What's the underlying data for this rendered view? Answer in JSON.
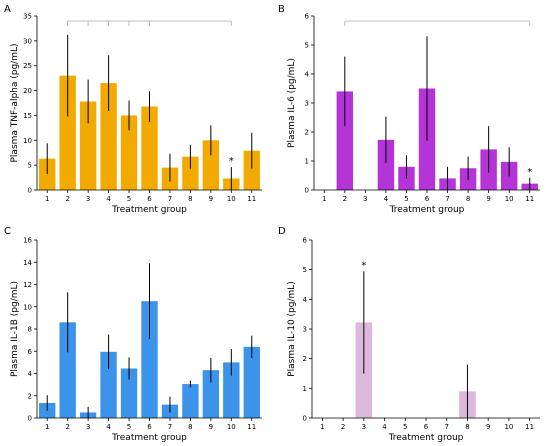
{
  "chart_data": [
    {
      "panel": "A",
      "type": "bar",
      "color": "#F2A900",
      "ylabel": "Plasma TNF-alpha (pg/mL)",
      "xlabel": "Treatment group",
      "ylim": [
        0,
        35
      ],
      "yticks": [
        0,
        5,
        10,
        15,
        20,
        25,
        30,
        35
      ],
      "categories": [
        "1",
        "2",
        "3",
        "4",
        "5",
        "6",
        "7",
        "8",
        "9",
        "10",
        "11"
      ],
      "values": [
        6.3,
        23.0,
        17.8,
        21.5,
        15.0,
        16.8,
        4.5,
        6.7,
        10.0,
        2.3,
        7.9
      ],
      "errors": [
        3.1,
        8.2,
        4.4,
        5.6,
        3.0,
        3.1,
        2.8,
        2.4,
        3.0,
        2.3,
        3.6
      ],
      "brackets": {
        "from": "2",
        "to": "10",
        "ticks": [
          "2",
          "3",
          "4",
          "5",
          "6",
          "10"
        ]
      },
      "annotations": [
        {
          "category": "10",
          "text": "*"
        }
      ]
    },
    {
      "panel": "B",
      "type": "bar",
      "color": "#B434D8",
      "ylabel": "Plasma IL-6 (pg/mL)",
      "xlabel": "Treatment group",
      "ylim": [
        0,
        6
      ],
      "yticks": [
        0,
        1,
        2,
        3,
        4,
        5,
        6
      ],
      "categories": [
        "1",
        "2",
        "3",
        "4",
        "5",
        "6",
        "7",
        "8",
        "9",
        "10",
        "11"
      ],
      "values": [
        0,
        3.4,
        0,
        1.73,
        0.8,
        3.5,
        0.4,
        0.75,
        1.4,
        0.97,
        0.22
      ],
      "errors": [
        0,
        1.2,
        0,
        0.8,
        0.4,
        1.8,
        0.4,
        0.4,
        0.8,
        0.5,
        0.2
      ],
      "brackets": {
        "from": "2",
        "to": "11",
        "ticks": []
      },
      "annotations": [
        {
          "category": "11",
          "text": "*"
        }
      ]
    },
    {
      "panel": "C",
      "type": "bar",
      "color": "#3B93EA",
      "ylabel": "Plasma IL-1B (pg/mL)",
      "xlabel": "Treatment group",
      "ylim": [
        0,
        16
      ],
      "yticks": [
        0,
        2,
        4,
        6,
        8,
        10,
        12,
        14,
        16
      ],
      "categories": [
        "1",
        "2",
        "3",
        "4",
        "5",
        "6",
        "7",
        "8",
        "9",
        "10",
        "11"
      ],
      "values": [
        1.35,
        8.6,
        0.5,
        5.95,
        4.45,
        10.5,
        1.2,
        3.05,
        4.3,
        5.0,
        6.4
      ],
      "errors": [
        0.7,
        2.7,
        0.5,
        1.55,
        1.0,
        3.4,
        0.7,
        0.3,
        1.1,
        1.2,
        1.0
      ],
      "annotations": []
    },
    {
      "panel": "D",
      "type": "bar",
      "color": "#DDB8DD",
      "ylabel": "Plasma IL-10 (pg/mL)",
      "xlabel": "Treatment group",
      "ylim": [
        0,
        6
      ],
      "yticks": [
        0,
        1,
        2,
        3,
        4,
        5,
        6
      ],
      "categories": [
        "1",
        "2",
        "3",
        "4",
        "5",
        "6",
        "7",
        "8",
        "9",
        "10",
        "11"
      ],
      "values": [
        0,
        0,
        3.22,
        0,
        0,
        0,
        0,
        0.9,
        0,
        0,
        0
      ],
      "errors": [
        0,
        0,
        1.72,
        0,
        0,
        0,
        0,
        0.9,
        0,
        0,
        0
      ],
      "annotations": [
        {
          "category": "3",
          "text": "*"
        }
      ]
    }
  ]
}
